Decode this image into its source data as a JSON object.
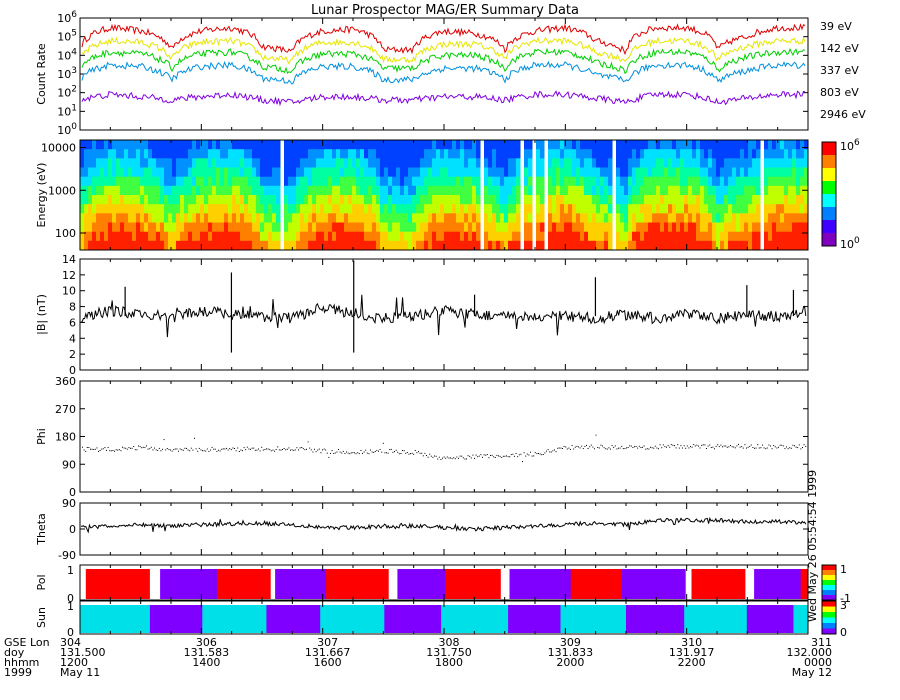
{
  "title": "Lunar Prospector MAG/ER Summary Data",
  "stamp": "Wed May 26 05:54:54 1999",
  "colors": {
    "ch39": "#e00000",
    "ch142": "#e6e600",
    "ch337": "#00d000",
    "ch803": "#0090e0",
    "ch2946": "#8000e0",
    "pol_a": "#ff0000",
    "pol_b": "#8000ff",
    "pol_gap": "#ffffff",
    "sun_a": "#00e0e8",
    "sun_b": "#8000ff"
  },
  "xaxis": {
    "row_labels": [
      "GSE Lon",
      "doy",
      "hhmm",
      "1999"
    ],
    "ticks": [
      {
        "lon": "304",
        "doy": "131.500",
        "hhmm": "1200",
        "date": "May 11"
      },
      {
        "lon": "306",
        "doy": "131.583",
        "hhmm": "1400",
        "date": ""
      },
      {
        "lon": "307",
        "doy": "131.667",
        "hhmm": "1600",
        "date": ""
      },
      {
        "lon": "308",
        "doy": "131.750",
        "hhmm": "1800",
        "date": ""
      },
      {
        "lon": "309",
        "doy": "131.833",
        "hhmm": "2000",
        "date": ""
      },
      {
        "lon": "310",
        "doy": "131.917",
        "hhmm": "2200",
        "date": ""
      },
      {
        "lon": "311",
        "doy": "132.000",
        "hhmm": "0000",
        "date": "May 12"
      }
    ]
  },
  "chart_data": [
    {
      "type": "line",
      "panel": "count-rate",
      "ylabel": "Count Rate",
      "yscale": "log",
      "ylim": [
        1,
        1000000
      ],
      "ytick_labels": [
        "10^0",
        "10^1",
        "10^2",
        "10^3",
        "10^4",
        "10^5",
        "10^6"
      ],
      "x": [
        131.5,
        131.521,
        131.542,
        131.563,
        131.583,
        131.604,
        131.625,
        131.646,
        131.667,
        131.688,
        131.708,
        131.729,
        131.75,
        131.771,
        131.792,
        131.813,
        131.833,
        131.854,
        131.875,
        131.896,
        131.917,
        131.938,
        131.958,
        131.979,
        132.0
      ],
      "series": [
        {
          "name": "39 eV",
          "values": [
            20000,
            300000,
            200000,
            20000,
            200000,
            300000,
            30000,
            15000,
            200000,
            250000,
            20000,
            20000,
            200000,
            150000,
            20000,
            200000,
            300000,
            60000,
            15000,
            300000,
            300000,
            20000,
            100000,
            300000,
            300000
          ]
        },
        {
          "name": "142 eV",
          "values": [
            6000,
            60000,
            50000,
            6000,
            50000,
            60000,
            8000,
            5000,
            50000,
            50000,
            6000,
            6000,
            40000,
            40000,
            6000,
            60000,
            60000,
            15000,
            5000,
            60000,
            60000,
            5000,
            30000,
            60000,
            60000
          ]
        },
        {
          "name": "337 eV",
          "values": [
            2000,
            15000,
            12000,
            2000,
            12000,
            15000,
            2500,
            1500,
            12000,
            12000,
            2000,
            2000,
            10000,
            10000,
            2000,
            15000,
            15000,
            4000,
            1500,
            15000,
            15000,
            1500,
            8000,
            15000,
            15000
          ]
        },
        {
          "name": "803 eV",
          "values": [
            500,
            3000,
            2500,
            500,
            2500,
            3000,
            600,
            400,
            2500,
            2500,
            500,
            500,
            2000,
            2000,
            500,
            3000,
            3000,
            900,
            400,
            3000,
            3000,
            400,
            1500,
            3000,
            3000
          ]
        },
        {
          "name": "2946 eV",
          "values": [
            40,
            80,
            60,
            40,
            60,
            80,
            40,
            30,
            60,
            60,
            40,
            40,
            60,
            60,
            40,
            80,
            80,
            50,
            30,
            80,
            80,
            30,
            50,
            80,
            80
          ]
        }
      ]
    },
    {
      "type": "heatmap",
      "panel": "energy-spectrogram",
      "ylabel": "Energy (eV)",
      "yscale": "log",
      "ylim": [
        40,
        15000
      ],
      "ytick_labels": [
        "100",
        "1000",
        "10000"
      ],
      "colorbar_labels": [
        "10^0",
        "10^6"
      ]
    },
    {
      "type": "line",
      "panel": "b-magnitude",
      "ylabel": "|B| (nT)",
      "ylim": [
        0,
        14
      ],
      "ytick_labels": [
        "0",
        "2",
        "4",
        "6",
        "8",
        "10",
        "12",
        "14"
      ],
      "x": [
        131.5,
        131.521,
        131.542,
        131.563,
        131.583,
        131.604,
        131.625,
        131.646,
        131.667,
        131.688,
        131.708,
        131.729,
        131.75,
        131.771,
        131.792,
        131.813,
        131.833,
        131.854,
        131.875,
        131.896,
        131.917,
        131.938,
        131.958,
        131.979,
        132.0
      ],
      "values": [
        6.5,
        7.5,
        7.0,
        6.6,
        7.5,
        7.0,
        6.8,
        6.5,
        8.0,
        7.0,
        6.5,
        6.8,
        7.5,
        7.0,
        6.8,
        6.5,
        6.8,
        6.5,
        7.0,
        6.5,
        7.0,
        6.5,
        7.0,
        6.8,
        7.5
      ],
      "spikes": [
        [
          131.531,
          10.5
        ],
        [
          131.604,
          12.3
        ],
        [
          131.604,
          2.2
        ],
        [
          131.688,
          13.8
        ],
        [
          131.688,
          2.2
        ],
        [
          131.771,
          9.5
        ],
        [
          131.854,
          11.7
        ],
        [
          131.958,
          10.7
        ],
        [
          131.99,
          10.1
        ]
      ]
    },
    {
      "type": "scatter",
      "panel": "phi",
      "ylabel": "Phi",
      "ylim": [
        0,
        360
      ],
      "ytick_labels": [
        "0",
        "90",
        "180",
        "270",
        "360"
      ],
      "x": [
        131.5,
        131.521,
        131.542,
        131.563,
        131.583,
        131.604,
        131.625,
        131.646,
        131.667,
        131.688,
        131.708,
        131.729,
        131.75,
        131.771,
        131.792,
        131.813,
        131.833,
        131.854,
        131.875,
        131.896,
        131.917,
        131.938,
        131.958,
        131.979,
        132.0
      ],
      "values": [
        140,
        140,
        145,
        140,
        140,
        140,
        140,
        142,
        135,
        130,
        135,
        130,
        110,
        115,
        120,
        125,
        145,
        148,
        145,
        148,
        150,
        148,
        150,
        148,
        148
      ]
    },
    {
      "type": "line",
      "panel": "theta",
      "ylabel": "Theta",
      "ylim": [
        -90,
        90
      ],
      "ytick_labels": [
        "-90",
        "0",
        "90"
      ],
      "x": [
        131.5,
        131.521,
        131.542,
        131.563,
        131.583,
        131.604,
        131.625,
        131.646,
        131.667,
        131.688,
        131.708,
        131.729,
        131.75,
        131.771,
        131.792,
        131.813,
        131.833,
        131.854,
        131.875,
        131.896,
        131.917,
        131.938,
        131.958,
        131.979,
        132.0
      ],
      "values": [
        5,
        10,
        15,
        12,
        15,
        18,
        20,
        15,
        5,
        5,
        10,
        10,
        5,
        0,
        5,
        10,
        15,
        20,
        15,
        30,
        30,
        30,
        25,
        25,
        20
      ]
    },
    {
      "type": "heatmap",
      "panel": "pol",
      "ylabel": "Pol",
      "ytick_labels": [
        "0",
        "1"
      ],
      "colorbar_labels": [
        "1",
        "-1"
      ],
      "segments": [
        [
          131.5,
          131.504,
          0
        ],
        [
          131.504,
          131.548,
          1
        ],
        [
          131.548,
          131.555,
          0
        ],
        [
          131.555,
          131.594,
          -1
        ],
        [
          131.594,
          131.631,
          1
        ],
        [
          131.631,
          131.634,
          0
        ],
        [
          131.634,
          131.669,
          -1
        ],
        [
          131.669,
          131.712,
          1
        ],
        [
          131.712,
          131.718,
          0
        ],
        [
          131.718,
          131.751,
          -1
        ],
        [
          131.751,
          131.789,
          1
        ],
        [
          131.789,
          131.795,
          0
        ],
        [
          131.795,
          131.837,
          -1
        ],
        [
          131.837,
          131.872,
          1
        ],
        [
          131.872,
          131.916,
          -1
        ],
        [
          131.916,
          131.92,
          0
        ],
        [
          131.92,
          131.957,
          1
        ],
        [
          131.957,
          131.963,
          0
        ],
        [
          131.963,
          131.995,
          -1
        ],
        [
          131.995,
          132.0,
          1
        ]
      ]
    },
    {
      "type": "heatmap",
      "panel": "sun",
      "ylabel": "Sun",
      "ytick_labels": [
        "0",
        "1"
      ],
      "colorbar_labels": [
        "3",
        "0"
      ],
      "segments": [
        [
          131.5,
          131.548,
          1
        ],
        [
          131.548,
          131.584,
          0
        ],
        [
          131.584,
          131.628,
          1
        ],
        [
          131.628,
          131.665,
          0
        ],
        [
          131.665,
          131.709,
          1
        ],
        [
          131.709,
          131.748,
          0
        ],
        [
          131.748,
          131.794,
          1
        ],
        [
          131.794,
          131.83,
          0
        ],
        [
          131.83,
          131.875,
          1
        ],
        [
          131.875,
          131.915,
          0
        ],
        [
          131.915,
          131.958,
          1
        ],
        [
          131.958,
          131.99,
          0
        ],
        [
          131.99,
          132.0,
          1
        ]
      ]
    }
  ]
}
